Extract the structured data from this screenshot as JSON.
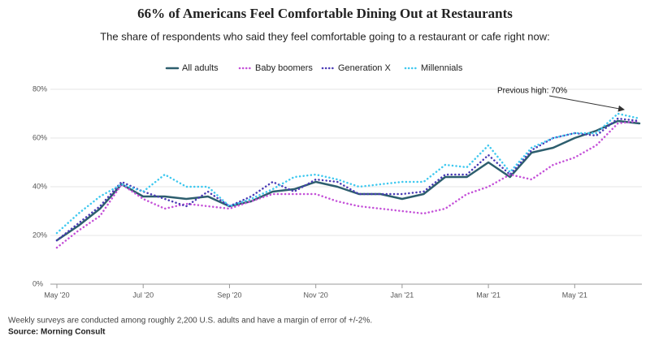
{
  "chart_data": {
    "type": "line",
    "title": "66% of Americans Feel Comfortable Dining Out at Restaurants",
    "subtitle": "The share of respondents who said they feel comfortable going to a restaurant or cafe right now:",
    "annotation": "Previous high: 70%",
    "note": "Weekly surveys are conducted among roughly 2,200 U.S. adults and have a margin of error of +/-2%.",
    "source": "Source: Morning Consult",
    "categories": [
      "May '20",
      null,
      null,
      null,
      "Jul '20",
      null,
      null,
      null,
      "Sep '20",
      null,
      null,
      null,
      "Nov '20",
      null,
      null,
      null,
      "Jan '21",
      null,
      null,
      null,
      "Mar '21",
      null,
      null,
      null,
      "May '21",
      null,
      null,
      null
    ],
    "ylim": [
      0,
      80
    ],
    "yticks": [
      {
        "value": 0,
        "label": "0%"
      },
      {
        "value": 20,
        "label": "20%"
      },
      {
        "value": 40,
        "label": "40%"
      },
      {
        "value": 60,
        "label": "60%"
      },
      {
        "value": 80,
        "label": "80%"
      }
    ],
    "grid": true,
    "series": [
      {
        "name": "All adults",
        "color": "#2d5e6e",
        "style": "solid",
        "values": [
          18,
          24,
          31,
          41,
          36,
          36,
          35,
          36,
          32,
          34,
          38,
          39,
          42,
          40,
          37,
          37,
          35,
          37,
          44,
          44,
          50,
          44,
          54,
          56,
          60,
          63,
          67,
          66
        ]
      },
      {
        "name": "Baby boomers",
        "color": "#c450d8",
        "style": "dotted",
        "values": [
          15,
          22,
          28,
          41,
          35,
          31,
          33,
          32,
          31,
          34,
          37,
          37,
          37,
          34,
          32,
          31,
          30,
          29,
          31,
          37,
          40,
          45,
          43,
          49,
          52,
          57,
          66,
          67
        ]
      },
      {
        "name": "Generation X",
        "color": "#4a3bb5",
        "style": "dotted",
        "values": [
          18,
          25,
          32,
          42,
          38,
          35,
          32,
          38,
          32,
          36,
          42,
          38,
          43,
          42,
          37,
          37,
          37,
          38,
          45,
          45,
          53,
          45,
          55,
          60,
          62,
          61,
          68,
          67
        ]
      },
      {
        "name": "Millennials",
        "color": "#3ec8ef",
        "style": "dotted",
        "values": [
          21,
          29,
          36,
          41,
          38,
          45,
          40,
          40,
          32,
          35,
          39,
          44,
          45,
          43,
          40,
          41,
          42,
          42,
          49,
          48,
          57,
          46,
          56,
          60,
          62,
          62,
          70,
          68
        ]
      }
    ]
  }
}
